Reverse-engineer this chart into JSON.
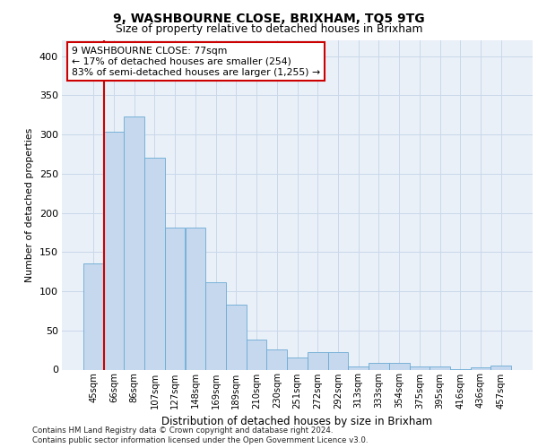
{
  "title": "9, WASHBOURNE CLOSE, BRIXHAM, TQ5 9TG",
  "subtitle": "Size of property relative to detached houses in Brixham",
  "xlabel": "Distribution of detached houses by size in Brixham",
  "ylabel": "Number of detached properties",
  "bar_color": "#c5d8ee",
  "bar_edge_color": "#6aaad4",
  "categories": [
    "45sqm",
    "66sqm",
    "86sqm",
    "107sqm",
    "127sqm",
    "148sqm",
    "169sqm",
    "189sqm",
    "210sqm",
    "230sqm",
    "251sqm",
    "272sqm",
    "292sqm",
    "313sqm",
    "333sqm",
    "354sqm",
    "375sqm",
    "395sqm",
    "416sqm",
    "436sqm",
    "457sqm"
  ],
  "values": [
    135,
    303,
    323,
    270,
    181,
    181,
    112,
    83,
    38,
    26,
    15,
    22,
    22,
    4,
    9,
    9,
    4,
    4,
    1,
    3,
    5
  ],
  "ylim": [
    0,
    420
  ],
  "yticks": [
    0,
    50,
    100,
    150,
    200,
    250,
    300,
    350,
    400
  ],
  "red_line_x": 1.0,
  "annotation_text": "9 WASHBOURNE CLOSE: 77sqm\n← 17% of detached houses are smaller (254)\n83% of semi-detached houses are larger (1,255) →",
  "annotation_box_color": "#ffffff",
  "annotation_box_edge": "#cc0000",
  "footnote1": "Contains HM Land Registry data © Crown copyright and database right 2024.",
  "footnote2": "Contains public sector information licensed under the Open Government Licence v3.0.",
  "grid_color": "#c8d8ea",
  "bg_color": "#eaf0f8"
}
